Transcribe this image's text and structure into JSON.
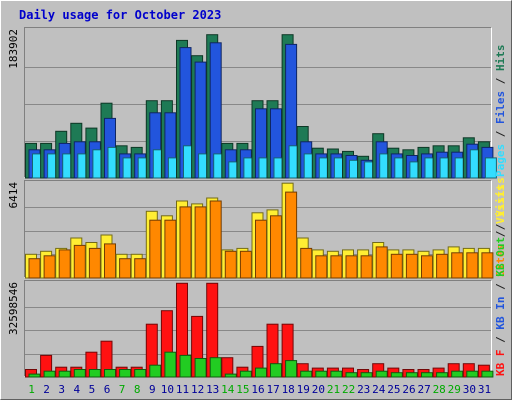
{
  "colors": {
    "frame_bg": "#c0c0c0",
    "plot_bg": "#c0c0c0",
    "title": "#0000cc",
    "hits": "#1e7a55",
    "files": "#2255dd",
    "pages": "#33ddff",
    "visits": "#ffee33",
    "sites": "#ff8800",
    "kb_f": "#ff1111",
    "kb_in": "#2255dd",
    "kb_out": "#22cc22",
    "weekend_day": "#00aa00",
    "weekday_day": "#000099"
  },
  "chart_data": {
    "type": "bar",
    "title": "Daily usage for October 2023",
    "days": [
      "1",
      "2",
      "3",
      "4",
      "5",
      "6",
      "7",
      "8",
      "9",
      "10",
      "11",
      "12",
      "13",
      "14",
      "15",
      "16",
      "17",
      "18",
      "19",
      "20",
      "21",
      "22",
      "23",
      "24",
      "25",
      "26",
      "27",
      "28",
      "29",
      "30",
      "31"
    ],
    "weekend_days": [
      1,
      7,
      8,
      14,
      15,
      21,
      22,
      28,
      29
    ],
    "panels": [
      {
        "ylabel_parts": [
          {
            "text": "Pages",
            "color": "#33ddff"
          },
          {
            "text": " / ",
            "color": "#222222"
          },
          {
            "text": "Files",
            "color": "#2255dd"
          },
          {
            "text": " / ",
            "color": "#222222"
          },
          {
            "text": "Hits",
            "color": "#1e7a55"
          }
        ],
        "max_label": "183902",
        "max": 183902,
        "series": [
          {
            "name": "Hits",
            "color": "#1e7a55",
            "values": [
              43000,
              43000,
              58000,
              68000,
              62000,
              93000,
              40000,
              38000,
              96000,
              96000,
              171000,
              152000,
              178000,
              43000,
              43000,
              96000,
              96000,
              178000,
              64000,
              37000,
              36000,
              33000,
              27000,
              55000,
              37000,
              35000,
              38000,
              40000,
              40000,
              50000,
              45000
            ]
          },
          {
            "name": "Files",
            "color": "#2255dd",
            "values": [
              35000,
              35000,
              43000,
              45000,
              45000,
              74000,
              30000,
              30000,
              81000,
              81000,
              162000,
              144000,
              168000,
              35000,
              35000,
              86000,
              86000,
              166000,
              45000,
              30000,
              30000,
              28000,
              22000,
              45000,
              30000,
              28000,
              30000,
              32000,
              32000,
              42000,
              38000
            ]
          },
          {
            "name": "Pages",
            "color": "#33ddff",
            "values": [
              30000,
              30000,
              30000,
              30000,
              35000,
              38000,
              25000,
              25000,
              35000,
              25000,
              40000,
              30000,
              30000,
              20000,
              25000,
              25000,
              25000,
              40000,
              30000,
              25000,
              25000,
              22000,
              20000,
              30000,
              25000,
              20000,
              25000,
              25000,
              25000,
              35000,
              25000
            ]
          }
        ]
      },
      {
        "ylabel_parts": [
          {
            "text": "Sites",
            "color": "#ff8800"
          },
          {
            "text": " / ",
            "color": "#222222"
          },
          {
            "text": "Visits",
            "color": "#ffee33"
          }
        ],
        "max_label": "6414",
        "max": 6414,
        "series": [
          {
            "name": "Visits",
            "color": "#ffee33",
            "values": [
              1600,
              1800,
              2000,
              2700,
              2400,
              2900,
              1600,
              1600,
              4500,
              4200,
              5200,
              5000,
              5400,
              1900,
              2000,
              4400,
              4600,
              6400,
              2700,
              1900,
              1800,
              1900,
              1900,
              2400,
              1900,
              1900,
              1800,
              1900,
              2100,
              2000,
              2000
            ]
          },
          {
            "name": "Sites",
            "color": "#ff8800",
            "values": [
              1300,
              1500,
              1900,
              2200,
              2000,
              2300,
              1300,
              1300,
              3900,
              3900,
              4800,
              4800,
              5200,
              1800,
              1800,
              3900,
              4200,
              5800,
              2000,
              1500,
              1500,
              1500,
              1500,
              2100,
              1600,
              1600,
              1500,
              1600,
              1700,
              1700,
              1700
            ]
          }
        ]
      },
      {
        "ylabel_parts": [
          {
            "text": "KB F",
            "color": "#ff1111"
          },
          {
            "text": " / ",
            "color": "#222222"
          },
          {
            "text": "KB In",
            "color": "#2255dd"
          },
          {
            "text": " / ",
            "color": "#222222"
          },
          {
            "text": "KB Out",
            "color": "#22cc22"
          },
          {
            "text": " / ",
            "color": "#222222"
          },
          {
            "text": "Visits",
            "color": "#ffee33"
          }
        ],
        "max_label": "32598546",
        "max": 32598546,
        "series": [
          {
            "name": "KB F",
            "color": "#ff1111",
            "values": [
              2600000,
              7500000,
              3400000,
              3400000,
              8600000,
              12400000,
              3400000,
              3400000,
              18300000,
              23000000,
              32500000,
              21000000,
              32500000,
              6700000,
              3400000,
              10600000,
              18300000,
              18300000,
              4600000,
              3100000,
              3100000,
              3100000,
              2600000,
              4600000,
              3100000,
              2600000,
              2600000,
              3100000,
              4600000,
              4600000,
              4100000
            ]
          },
          {
            "name": "KB Out",
            "color": "#22cc22",
            "values": [
              1000000,
              2000000,
              2000000,
              2600000,
              2600000,
              2600000,
              2600000,
              2600000,
              4100000,
              8600000,
              7500000,
              6400000,
              6700000,
              1000000,
              2000000,
              3100000,
              4600000,
              5700000,
              2000000,
              2000000,
              2000000,
              1500000,
              1500000,
              2000000,
              1500000,
              1500000,
              1500000,
              1500000,
              2000000,
              2000000,
              2000000
            ]
          }
        ]
      }
    ]
  }
}
